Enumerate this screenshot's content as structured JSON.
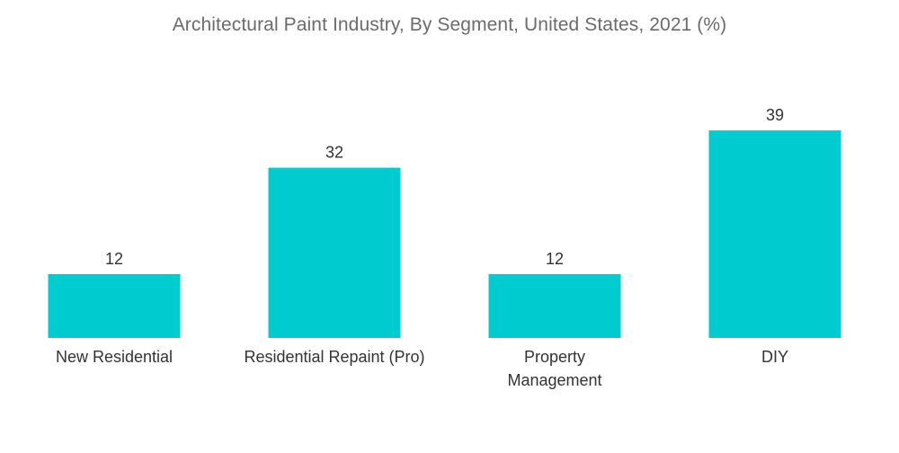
{
  "chart_data": {
    "type": "bar",
    "title": "Architectural Paint Industry, By Segment, United States, 2021 (%)",
    "categories": [
      "New Residential",
      "Residential Repaint (Pro)",
      "Property Management",
      "DIY"
    ],
    "category_lines": [
      [
        "New Residential"
      ],
      [
        "Residential Repaint (Pro)"
      ],
      [
        "Property",
        "Management"
      ],
      [
        "DIY"
      ]
    ],
    "values": [
      12,
      32,
      12,
      39
    ],
    "xlabel": "",
    "ylabel": "",
    "ylim": [
      0,
      45
    ],
    "grid": false,
    "legend": "none",
    "bar_color": "#00cccf"
  }
}
